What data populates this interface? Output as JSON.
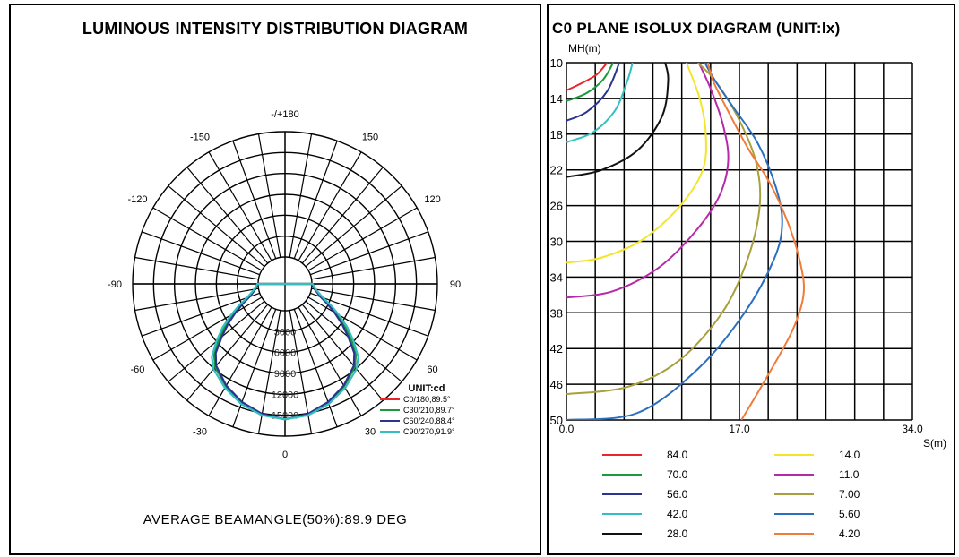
{
  "left": {
    "title": "LUMINOUS INTENSITY DISTRIBUTION DIAGRAM",
    "beam_angle_text": "AVERAGE BEAMANGLE(50%):89.9 DEG",
    "unit_label": "UNIT:cd"
  },
  "right": {
    "title": "C0 PLANE ISOLUX DIAGRAM (UNIT:lx)",
    "y_axis_label": "MH(m)",
    "x_axis_label": "S(m)"
  },
  "chart_data": [
    {
      "type": "polar",
      "title": "LUMINOUS INTENSITY DISTRIBUTION DIAGRAM",
      "angle_labels": [
        {
          "angle": 180,
          "text": "-/+180"
        },
        {
          "angle": 150,
          "text": "150"
        },
        {
          "angle": -150,
          "text": "-150"
        },
        {
          "angle": 120,
          "text": "120"
        },
        {
          "angle": -120,
          "text": "-120"
        },
        {
          "angle": 90,
          "text": "90"
        },
        {
          "angle": -90,
          "text": "-90"
        },
        {
          "angle": 60,
          "text": "60"
        },
        {
          "angle": -60,
          "text": "-60"
        },
        {
          "angle": 30,
          "text": "30"
        },
        {
          "angle": -30,
          "text": "-30"
        },
        {
          "angle": 0,
          "text": "0"
        }
      ],
      "radial_labels": [
        "0",
        "3000",
        "6000",
        "9000",
        "12000",
        "15000"
      ],
      "radial_max": 18000,
      "unit": "UNIT:cd",
      "series": [
        {
          "name": "C0/180,89.5°",
          "color": "#e8262b",
          "beam_angle": 89.5,
          "angles": [
            0,
            10,
            20,
            30,
            40,
            45,
            50,
            55,
            60,
            65,
            70,
            80,
            90
          ],
          "values": [
            15600,
            15200,
            14300,
            13100,
            11700,
            10500,
            8400,
            6500,
            4600,
            3000,
            1700,
            500,
            80
          ]
        },
        {
          "name": "C30/210,89.7°",
          "color": "#1a9a3a",
          "beam_angle": 89.7,
          "angles": [
            0,
            10,
            20,
            30,
            40,
            45,
            50,
            55,
            60,
            65,
            70,
            80,
            90
          ],
          "values": [
            15600,
            15200,
            14300,
            13100,
            11700,
            10500,
            8450,
            6550,
            4650,
            3050,
            1700,
            500,
            80
          ]
        },
        {
          "name": "C60/240,88.4°",
          "color": "#2b3590",
          "beam_angle": 88.4,
          "angles": [
            0,
            10,
            20,
            30,
            40,
            45,
            50,
            55,
            60,
            65,
            70,
            80,
            90
          ],
          "values": [
            15600,
            15100,
            14200,
            13000,
            11500,
            10200,
            8000,
            6100,
            4300,
            2800,
            1550,
            450,
            70
          ]
        },
        {
          "name": "C90/270,91.9°",
          "color": "#33bfbf",
          "beam_angle": 91.9,
          "angles": [
            0,
            10,
            20,
            30,
            40,
            45,
            50,
            55,
            60,
            65,
            70,
            80,
            90
          ],
          "values": [
            15600,
            15300,
            14500,
            13400,
            12100,
            11000,
            9000,
            7100,
            5100,
            3400,
            1950,
            600,
            100
          ]
        }
      ],
      "annotation": "AVERAGE BEAMANGLE(50%):89.9 DEG"
    },
    {
      "type": "line",
      "title": "C0 PLANE ISOLUX DIAGRAM (UNIT:lx)",
      "xlabel": "S(m)",
      "ylabel": "MH(m)",
      "xlim": [
        0,
        34
      ],
      "ylim": [
        10,
        50
      ],
      "y_inverted": true,
      "x_ticks": [
        "0.0",
        "17.0",
        "34.0"
      ],
      "y_ticks": [
        "10",
        "14",
        "18",
        "22",
        "26",
        "30",
        "34",
        "38",
        "42",
        "46",
        "50"
      ],
      "grid_columns": 12,
      "grid_rows": 10,
      "series": [
        {
          "name": "84.0",
          "color": "#e8262b",
          "points": [
            [
              0,
              13.1
            ],
            [
              1.5,
              12.3
            ],
            [
              3.0,
              11.3
            ],
            [
              4.0,
              10.0
            ]
          ]
        },
        {
          "name": "70.0",
          "color": "#1a9a3a",
          "points": [
            [
              0,
              14.3
            ],
            [
              2.0,
              13.4
            ],
            [
              3.6,
              11.9
            ],
            [
              4.6,
              10.0
            ]
          ]
        },
        {
          "name": "56.0",
          "color": "#2b3590",
          "points": [
            [
              0,
              16.5
            ],
            [
              2.0,
              15.5
            ],
            [
              4.0,
              13.2
            ],
            [
              5.2,
              10.0
            ]
          ]
        },
        {
          "name": "42.0",
          "color": "#33bfbf",
          "points": [
            [
              0,
              18.9
            ],
            [
              2.6,
              17.8
            ],
            [
              4.8,
              15.3
            ],
            [
              6.0,
              12.0
            ],
            [
              6.5,
              10.0
            ]
          ]
        },
        {
          "name": "28.0",
          "color": "#111111",
          "points": [
            [
              0,
              22.8
            ],
            [
              3.5,
              22.0
            ],
            [
              7.0,
              19.8
            ],
            [
              9.4,
              16.0
            ],
            [
              10.0,
              12.0
            ],
            [
              9.7,
              10.0
            ]
          ]
        },
        {
          "name": "14.0",
          "color": "#f2e52a",
          "points": [
            [
              0,
              32.4
            ],
            [
              3.5,
              31.8
            ],
            [
              7.5,
              29.8
            ],
            [
              11.2,
              26.0
            ],
            [
              13.4,
              22.0
            ],
            [
              13.7,
              18.0
            ],
            [
              13.1,
              14.0
            ],
            [
              11.8,
              10.0
            ]
          ]
        },
        {
          "name": "11.0",
          "color": "#b52aa8",
          "points": [
            [
              0,
              36.3
            ],
            [
              4.5,
              35.6
            ],
            [
              9.0,
              33.0
            ],
            [
              12.6,
              29.0
            ],
            [
              15.0,
              25.0
            ],
            [
              15.9,
              21.0
            ],
            [
              15.4,
              17.0
            ],
            [
              14.2,
              13.0
            ],
            [
              13.0,
              10.0
            ]
          ]
        },
        {
          "name": "7.00",
          "color": "#a8a03c",
          "points": [
            [
              0,
              47.1
            ],
            [
              6.0,
              46.3
            ],
            [
              11.0,
              43.4
            ],
            [
              15.3,
              38.0
            ],
            [
              17.8,
              32.0
            ],
            [
              19.0,
              26.0
            ],
            [
              18.6,
              21.0
            ],
            [
              16.8,
              16.0
            ],
            [
              14.6,
              12.0
            ],
            [
              12.9,
              10.0
            ]
          ]
        },
        {
          "name": "5.60",
          "color": "#2a6fc0",
          "points": [
            [
              0,
              50.0
            ],
            [
              7.0,
              49.2
            ],
            [
              13.0,
              44.2
            ],
            [
              17.5,
              38.0
            ],
            [
              20.4,
              32.0
            ],
            [
              21.2,
              28.0
            ],
            [
              20.6,
              24.0
            ],
            [
              18.8,
              19.0
            ],
            [
              16.4,
              15.0
            ],
            [
              14.6,
              12.0
            ],
            [
              13.6,
              10.0
            ]
          ]
        },
        {
          "name": "4.20",
          "color": "#f07b3a",
          "points": [
            [
              17.2,
              50.0
            ],
            [
              19.8,
              45.0
            ],
            [
              22.2,
              40.0
            ],
            [
              23.3,
              36.0
            ],
            [
              23.0,
              32.5
            ],
            [
              21.8,
              28.0
            ],
            [
              20.0,
              23.5
            ],
            [
              17.8,
              19.5
            ],
            [
              15.7,
              15.0
            ],
            [
              14.4,
              12.0
            ],
            [
              13.9,
              10.0
            ]
          ]
        }
      ]
    }
  ]
}
